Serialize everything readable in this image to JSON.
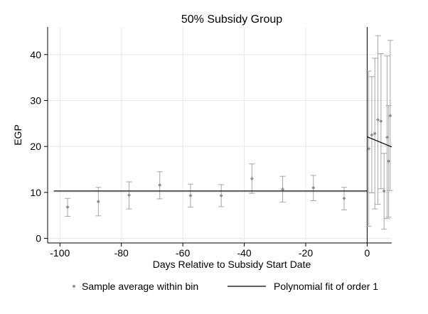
{
  "chart_data": {
    "type": "scatter",
    "title": "50% Subsidy Group",
    "xlabel": "Days Relative to Subsidy Start Date",
    "ylabel": "EGP",
    "xlim": [
      -104,
      8
    ],
    "ylim": [
      -1,
      46
    ],
    "xticks": [
      -100,
      -80,
      -60,
      -40,
      -20,
      0
    ],
    "xtick_labels": [
      "-100",
      "-80",
      "-60",
      "-40",
      "-20",
      "0"
    ],
    "yticks": [
      0,
      10,
      20,
      30,
      40
    ],
    "ytick_labels": [
      "0",
      "10",
      "20",
      "30",
      "40"
    ],
    "grid": true,
    "vline_x": 0,
    "legend_position": "bottom",
    "legend": [
      {
        "key": "points",
        "label": "Sample average within bin"
      },
      {
        "key": "fit",
        "label": "Polynomial fit of order 1"
      }
    ],
    "colors": {
      "points": "#8c8c8c",
      "errorbars": "#a6a6a6",
      "fit": "#000000",
      "grid": "#e8e8e8"
    },
    "series": [
      {
        "kind": "points_with_ci",
        "points": [
          {
            "x": -97.5,
            "y": 6.8,
            "lo": 4.8,
            "hi": 8.7
          },
          {
            "x": -87.5,
            "y": 8.0,
            "lo": 4.9,
            "hi": 11.1
          },
          {
            "x": -77.5,
            "y": 9.4,
            "lo": 6.4,
            "hi": 12.3
          },
          {
            "x": -67.5,
            "y": 11.6,
            "lo": 8.6,
            "hi": 14.5
          },
          {
            "x": -57.5,
            "y": 9.3,
            "lo": 6.8,
            "hi": 11.8
          },
          {
            "x": -47.5,
            "y": 9.3,
            "lo": 6.9,
            "hi": 11.7
          },
          {
            "x": -37.5,
            "y": 13.0,
            "lo": 9.8,
            "hi": 16.2
          },
          {
            "x": -27.5,
            "y": 10.7,
            "lo": 7.9,
            "hi": 13.5
          },
          {
            "x": -17.5,
            "y": 11.0,
            "lo": 8.2,
            "hi": 13.7
          },
          {
            "x": -7.5,
            "y": 8.7,
            "lo": 6.2,
            "hi": 11.1
          },
          {
            "x": 0.5,
            "y": 19.5,
            "lo": 2.6,
            "hi": 36.4
          },
          {
            "x": 1.5,
            "y": 22.5,
            "lo": 9.9,
            "hi": 35.2
          },
          {
            "x": 2.5,
            "y": 22.8,
            "lo": 6.4,
            "hi": 39.2
          },
          {
            "x": 3.5,
            "y": 25.8,
            "lo": 7.4,
            "hi": 44.1
          },
          {
            "x": 4.5,
            "y": 25.5,
            "lo": 10.8,
            "hi": 40.2
          },
          {
            "x": 5.5,
            "y": 10.3,
            "lo": 2.0,
            "hi": 18.5
          },
          {
            "x": 6.5,
            "y": 22.0,
            "lo": 4.3,
            "hi": 39.7
          },
          {
            "x": 7.0,
            "y": 16.8,
            "lo": 4.6,
            "hi": 28.9
          },
          {
            "x": 7.5,
            "y": 26.7,
            "lo": 10.4,
            "hi": 43.1
          }
        ]
      },
      {
        "kind": "fit",
        "segments": [
          [
            {
              "x": -102,
              "y": 10.3
            },
            {
              "x": 0,
              "y": 10.3
            }
          ],
          [
            {
              "x": 0,
              "y": 22.1
            },
            {
              "x": 8,
              "y": 19.9
            }
          ]
        ]
      }
    ]
  }
}
